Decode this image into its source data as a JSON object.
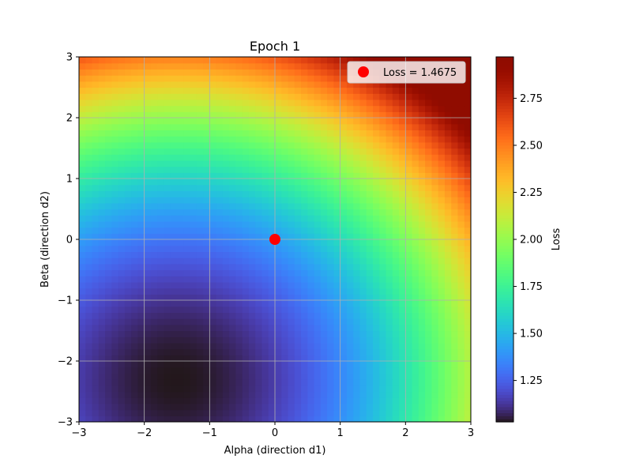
{
  "chart_data": {
    "type": "heatmap",
    "title": "Epoch 1",
    "xlabel": "Alpha (direction d1)",
    "ylabel": "Beta (direction d2)",
    "colorbar_label": "Loss",
    "xlim": [
      -3,
      3
    ],
    "ylim": [
      -3,
      3
    ],
    "xticks": [
      -3,
      -2,
      -1,
      0,
      1,
      2,
      3
    ],
    "yticks": [
      -3,
      -2,
      -1,
      0,
      1,
      2,
      3
    ],
    "xtick_labels": [
      "−3",
      "−2",
      "−1",
      "0",
      "1",
      "2",
      "3"
    ],
    "ytick_labels": [
      "−3",
      "−2",
      "−1",
      "0",
      "1",
      "2",
      "3"
    ],
    "colorbar_range": [
      1.03,
      2.97
    ],
    "colorbar_ticks": [
      1.25,
      1.5,
      1.75,
      2.0,
      2.25,
      2.5,
      2.75
    ],
    "colorbar_tick_labels": [
      "1.25",
      "1.50",
      "1.75",
      "2.00",
      "2.25",
      "2.50",
      "2.75"
    ],
    "colormap": "turbo",
    "grid": true,
    "surface": {
      "minimum": [
        -1.5,
        -2.3
      ],
      "loss_at_minimum": 1.03,
      "radial_scale": 0.052,
      "max_loss": 2.97
    },
    "points": [
      {
        "x": 0,
        "y": 0,
        "loss": 1.4675,
        "color": "#ff0000"
      }
    ],
    "legend": {
      "location": "upper right",
      "label": "Loss = 1.4675",
      "marker_color": "#ff0000"
    }
  }
}
